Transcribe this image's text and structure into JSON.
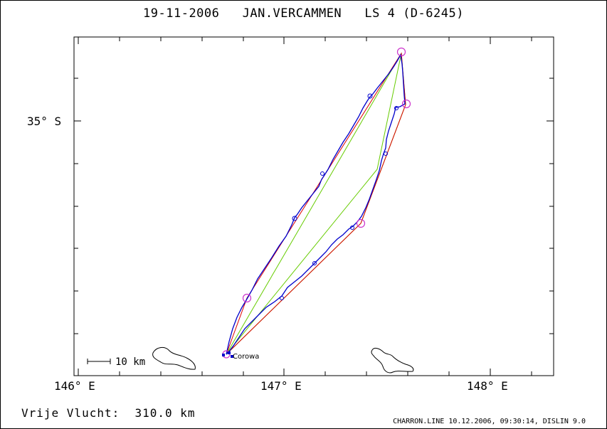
{
  "header": {
    "date": "19-11-2006",
    "pilot": "JAN.VERCAMMEN",
    "glider": "LS 4 (D-6245)"
  },
  "axes": {
    "lat_label": "35° S",
    "lon_labels": [
      "146° E",
      "147° E",
      "148° E"
    ]
  },
  "scale": {
    "label": "10 km"
  },
  "place": {
    "name": "Corowa"
  },
  "footer": {
    "distance_label": "Vrije Vlucht:",
    "distance_value": "310.0 km",
    "credit": "CHARRON.LINE 10.12.2006, 09:30:14, DISLIN 9.0"
  },
  "colors": {
    "track": "#0000cc",
    "task": "#dd0000",
    "triangle": "#66cc00",
    "turnpoint": "#cc33cc"
  }
}
